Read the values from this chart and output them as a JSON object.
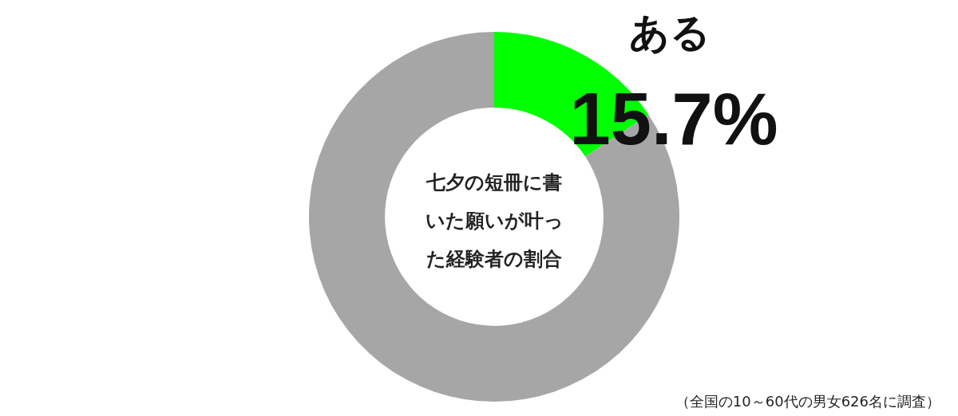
{
  "chart_data": {
    "type": "donut",
    "title": "七夕の短冊に書いた願いが叶った経験者の割合",
    "categories": [
      "ある",
      null
    ],
    "values": [
      15.7,
      84.3
    ],
    "colors": [
      "#00ff00",
      "#a6a6a6"
    ],
    "value_labels": [
      "15.7%",
      null
    ],
    "legend": false,
    "annotations": [
      "（全国の10～60代の男女626名に調査）"
    ]
  }
}
